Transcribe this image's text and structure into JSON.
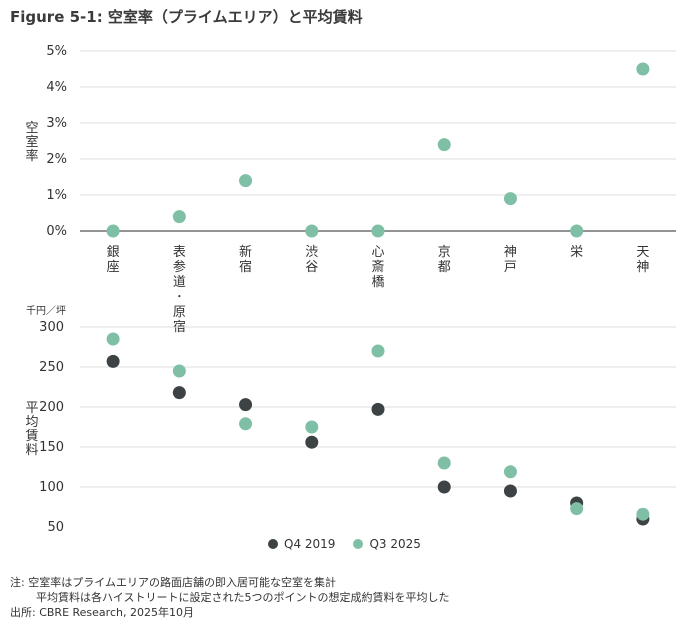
{
  "title": "Figure 5-1: 空室率（プライムエリア）と平均賃料",
  "colors": {
    "q4_2019": "#3d4245",
    "q3_2025": "#7fbfa6",
    "grid": "#dcdcdc",
    "axis": "#555555"
  },
  "chart_data": [
    {
      "type": "scatter",
      "ylabel": "空室率",
      "ylim": [
        0,
        5
      ],
      "yticks": [
        "0%",
        "1%",
        "2%",
        "3%",
        "4%",
        "5%"
      ],
      "categories": [
        "銀座",
        "表参道･原宿",
        "新宿",
        "渋谷",
        "心斎橋",
        "京都",
        "神戸",
        "栄",
        "天神"
      ],
      "series": [
        {
          "name": "Q3 2025",
          "values": [
            0,
            0.4,
            1.4,
            0,
            0,
            2.4,
            0.9,
            0,
            4.5
          ]
        }
      ]
    },
    {
      "type": "scatter",
      "ylabel": "平均賃料",
      "unit": "千円／坪",
      "ylim": [
        50,
        300
      ],
      "yticks": [
        "50",
        "100",
        "150",
        "200",
        "250",
        "300"
      ],
      "categories": [
        "銀座",
        "表参道･原宿",
        "新宿",
        "渋谷",
        "心斎橋",
        "京都",
        "神戸",
        "栄",
        "天神"
      ],
      "series": [
        {
          "name": "Q4 2019",
          "values": [
            257,
            218,
            203,
            156,
            197,
            100,
            95,
            80,
            60
          ]
        },
        {
          "name": "Q3 2025",
          "values": [
            285,
            245,
            179,
            175,
            270,
            130,
            119,
            73,
            66
          ]
        }
      ]
    }
  ],
  "legend": [
    "Q4 2019",
    "Q3 2025"
  ],
  "notes": [
    "注: 空室率はプライムエリアの路面店舗の即入居可能な空室を集計",
    "平均賃料は各ハイストリートに設定された5つのポイントの想定成約賃料を平均した",
    "出所: CBRE Research, 2025年10月"
  ]
}
